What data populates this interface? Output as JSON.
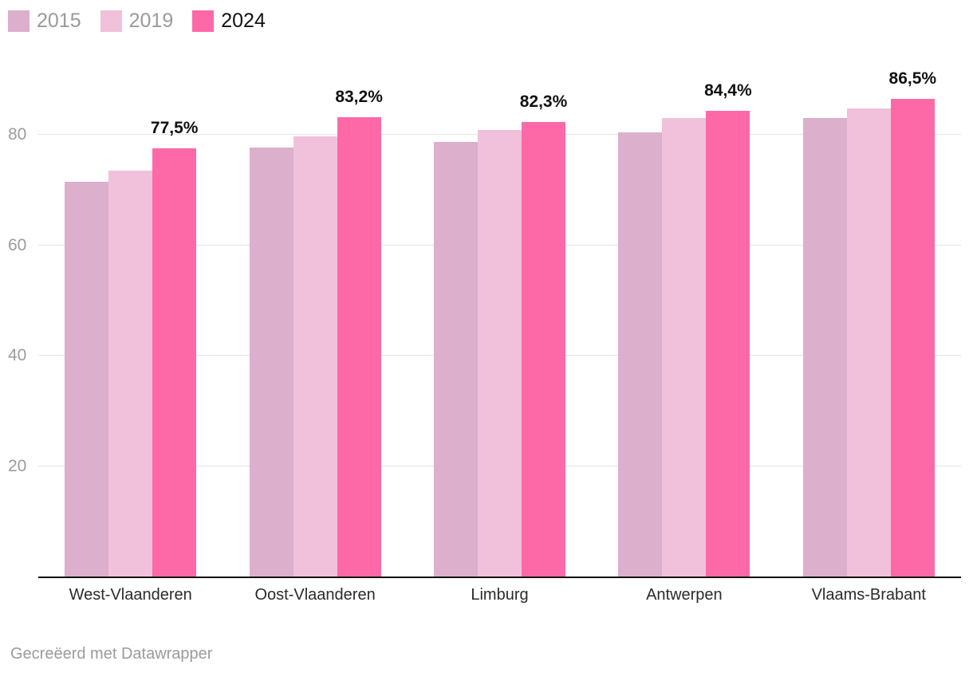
{
  "chart_data": {
    "type": "bar",
    "title": "",
    "xlabel": "",
    "ylabel": "",
    "categories": [
      "West-Vlaanderen",
      "Oost-Vlaanderen",
      "Limburg",
      "Antwerpen",
      "Vlaams-Brabant"
    ],
    "series": [
      {
        "name": "2015",
        "color": "#dcafcc",
        "legend_text_color": "#9a9a9a",
        "values": [
          71.5,
          77.7,
          78.7,
          80.4,
          83.1
        ]
      },
      {
        "name": "2019",
        "color": "#f1c0da",
        "legend_text_color": "#9a9a9a",
        "values": [
          73.5,
          79.8,
          80.9,
          83.0,
          84.8
        ]
      },
      {
        "name": "2024",
        "color": "#fd69a7",
        "legend_text_color": "#111111",
        "values": [
          77.5,
          83.2,
          82.3,
          84.4,
          86.5
        ],
        "show_value_labels": true,
        "value_labels": [
          "77,5%",
          "83,2%",
          "82,3%",
          "84,4%",
          "86,5%"
        ]
      }
    ],
    "yticks": [
      20,
      40,
      60,
      80
    ],
    "ylim": [
      0,
      94.9
    ],
    "grid": "horizontal",
    "legend_position": "top-left"
  },
  "footer": {
    "credit": "Gecreëerd met Datawrapper"
  },
  "colors": {
    "background": "#ffffff",
    "grid": "#e3e3e3",
    "axis_line": "#111111",
    "tick_label": "#9c9c9c",
    "category_label": "#2b2b2b",
    "value_label": "#111111",
    "footer_text": "#9b9b9b"
  }
}
